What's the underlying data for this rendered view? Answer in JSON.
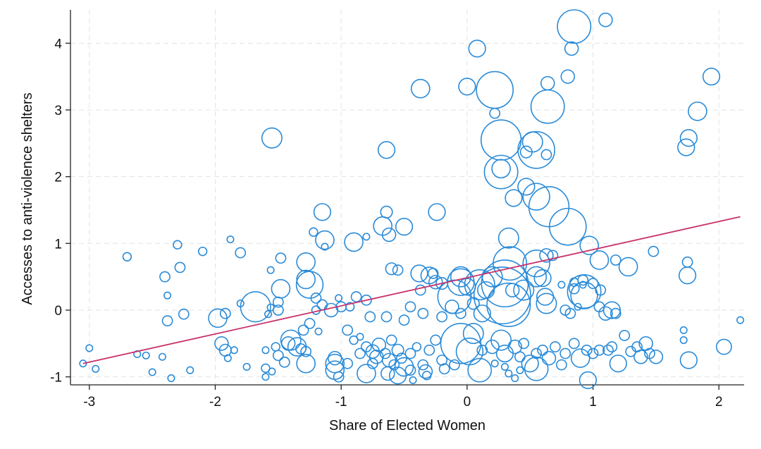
{
  "chart_data": {
    "type": "scatter",
    "xlabel": "Share of Elected Women",
    "ylabel": "Accesses to anti-violence shelters",
    "xlim": [
      -3.15,
      2.2
    ],
    "ylim": [
      -1.12,
      4.5
    ],
    "xticks": [
      -3,
      -2,
      -1,
      0,
      1,
      2
    ],
    "yticks": [
      -1,
      0,
      1,
      2,
      3,
      4
    ],
    "grid": true,
    "colors": {
      "bubble": "#2a8bd8",
      "fit_line": "#c8326b"
    },
    "fit_line": {
      "x": [
        -3.05,
        2.17
      ],
      "y": [
        -0.8,
        1.4
      ]
    },
    "points": [
      [
        0.85,
        4.25,
        1.0
      ],
      [
        1.1,
        4.35,
        0.4
      ],
      [
        0.08,
        3.92,
        0.5
      ],
      [
        0.83,
        3.92,
        0.4
      ],
      [
        1.94,
        3.5,
        0.5
      ],
      [
        0.8,
        3.5,
        0.4
      ],
      [
        0.64,
        3.4,
        0.4
      ],
      [
        -0.37,
        3.32,
        0.55
      ],
      [
        0.0,
        3.35,
        0.5
      ],
      [
        0.22,
        3.3,
        1.1
      ],
      [
        0.64,
        3.05,
        1.0
      ],
      [
        0.22,
        2.95,
        0.3
      ],
      [
        1.83,
        2.98,
        0.55
      ],
      [
        -1.55,
        2.58,
        0.6
      ],
      [
        0.27,
        2.55,
        1.2
      ],
      [
        0.52,
        2.52,
        0.6
      ],
      [
        0.55,
        2.4,
        1.1
      ],
      [
        1.76,
        2.58,
        0.5
      ],
      [
        1.74,
        2.44,
        0.5
      ],
      [
        -0.64,
        2.4,
        0.5
      ],
      [
        0.47,
        2.37,
        0.35
      ],
      [
        0.63,
        2.33,
        0.3
      ],
      [
        0.27,
        2.07,
        1.0
      ],
      [
        0.27,
        2.12,
        0.55
      ],
      [
        0.47,
        1.85,
        0.5
      ],
      [
        0.55,
        1.7,
        0.8
      ],
      [
        0.37,
        1.68,
        0.5
      ],
      [
        0.65,
        1.55,
        1.2
      ],
      [
        0.8,
        1.25,
        1.1
      ],
      [
        -1.15,
        1.47,
        0.5
      ],
      [
        -0.64,
        1.47,
        0.35
      ],
      [
        -0.24,
        1.47,
        0.5
      ],
      [
        -0.67,
        1.26,
        0.55
      ],
      [
        -0.5,
        1.25,
        0.5
      ],
      [
        -0.62,
        1.13,
        0.4
      ],
      [
        -1.13,
        1.05,
        0.55
      ],
      [
        -0.9,
        1.02,
        0.55
      ],
      [
        -1.22,
        1.17,
        0.25
      ],
      [
        -0.8,
        1.1,
        0.2
      ],
      [
        -1.13,
        0.95,
        0.2
      ],
      [
        0.33,
        1.08,
        0.6
      ],
      [
        0.97,
        0.97,
        0.55
      ],
      [
        0.34,
        0.7,
        1.0
      ],
      [
        0.55,
        0.7,
        0.8
      ],
      [
        0.63,
        0.82,
        0.4
      ],
      [
        0.68,
        0.82,
        0.3
      ],
      [
        1.05,
        0.75,
        0.55
      ],
      [
        1.18,
        0.75,
        0.3
      ],
      [
        1.28,
        0.65,
        0.55
      ],
      [
        1.48,
        0.88,
        0.3
      ],
      [
        1.75,
        0.72,
        0.3
      ],
      [
        1.75,
        0.52,
        0.5
      ],
      [
        -2.7,
        0.8,
        0.25
      ],
      [
        -2.3,
        0.98,
        0.25
      ],
      [
        -2.1,
        0.88,
        0.25
      ],
      [
        -1.88,
        1.06,
        0.2
      ],
      [
        -1.8,
        0.86,
        0.3
      ],
      [
        -2.28,
        0.64,
        0.3
      ],
      [
        -2.4,
        0.5,
        0.3
      ],
      [
        -1.48,
        0.78,
        0.3
      ],
      [
        -1.56,
        0.6,
        0.2
      ],
      [
        -1.28,
        0.72,
        0.55
      ],
      [
        -1.28,
        0.46,
        0.55
      ],
      [
        -1.25,
        0.38,
        0.8
      ],
      [
        -1.48,
        0.32,
        0.55
      ],
      [
        -1.5,
        0.12,
        0.3
      ],
      [
        -1.56,
        0.04,
        0.2
      ],
      [
        -1.68,
        0.05,
        0.9
      ],
      [
        -1.5,
        0.0,
        0.3
      ],
      [
        -1.58,
        -0.06,
        0.2
      ],
      [
        -2.38,
        0.22,
        0.2
      ],
      [
        -2.25,
        -0.06,
        0.3
      ],
      [
        -2.38,
        -0.16,
        0.3
      ],
      [
        -1.98,
        -0.12,
        0.55
      ],
      [
        -1.92,
        -0.05,
        0.3
      ],
      [
        -1.8,
        0.1,
        0.2
      ],
      [
        -1.2,
        0.18,
        0.3
      ],
      [
        -1.15,
        0.08,
        0.3
      ],
      [
        -1.2,
        0.0,
        0.25
      ],
      [
        -1.08,
        0.0,
        0.4
      ],
      [
        -1.02,
        0.18,
        0.2
      ],
      [
        -1.0,
        0.05,
        0.3
      ],
      [
        -0.93,
        0.05,
        0.25
      ],
      [
        -0.88,
        0.2,
        0.3
      ],
      [
        -0.8,
        0.15,
        0.3
      ],
      [
        -0.6,
        0.62,
        0.35
      ],
      [
        -0.55,
        0.6,
        0.3
      ],
      [
        -0.38,
        0.55,
        0.5
      ],
      [
        -0.37,
        0.3,
        0.3
      ],
      [
        -0.3,
        0.52,
        0.5
      ],
      [
        -0.27,
        0.55,
        0.3
      ],
      [
        -0.25,
        0.42,
        0.4
      ],
      [
        -0.2,
        0.4,
        0.35
      ],
      [
        -0.05,
        0.5,
        0.6
      ],
      [
        -0.1,
        0.2,
        1.0
      ],
      [
        -0.05,
        0.42,
        0.8
      ],
      [
        0.0,
        0.35,
        0.5
      ],
      [
        0.1,
        0.38,
        0.9
      ],
      [
        0.15,
        0.3,
        0.5
      ],
      [
        0.2,
        0.5,
        0.6
      ],
      [
        0.3,
        0.4,
        1.4
      ],
      [
        0.28,
        0.22,
        1.7
      ],
      [
        0.33,
        0.08,
        1.3
      ],
      [
        0.36,
        0.3,
        0.4
      ],
      [
        0.45,
        0.3,
        0.6
      ],
      [
        0.55,
        0.5,
        0.6
      ],
      [
        0.6,
        0.48,
        0.5
      ],
      [
        0.62,
        0.2,
        0.5
      ],
      [
        0.63,
        0.1,
        0.6
      ],
      [
        0.75,
        0.38,
        0.2
      ],
      [
        0.85,
        0.42,
        0.25
      ],
      [
        0.92,
        0.38,
        0.2
      ],
      [
        0.85,
        0.32,
        0.3
      ],
      [
        0.92,
        0.45,
        0.3
      ],
      [
        0.93,
        0.28,
        1.0
      ],
      [
        0.93,
        0.22,
        0.8
      ],
      [
        1.0,
        0.4,
        0.3
      ],
      [
        1.06,
        0.3,
        0.3
      ],
      [
        1.05,
        0.05,
        0.3
      ],
      [
        1.1,
        -0.05,
        0.4
      ],
      [
        1.15,
        0.0,
        0.5
      ],
      [
        1.18,
        -0.05,
        0.3
      ],
      [
        0.78,
        0.0,
        0.3
      ],
      [
        0.88,
        0.05,
        0.2
      ],
      [
        0.82,
        -0.05,
        0.3
      ],
      [
        -0.77,
        -0.1,
        0.3
      ],
      [
        -0.64,
        -0.1,
        0.3
      ],
      [
        -0.5,
        -0.15,
        0.3
      ],
      [
        -0.45,
        0.05,
        0.3
      ],
      [
        -0.35,
        -0.05,
        0.3
      ],
      [
        -0.2,
        -0.1,
        0.3
      ],
      [
        -0.12,
        0.05,
        0.4
      ],
      [
        -0.05,
        -0.05,
        0.3
      ],
      [
        0.05,
        0.1,
        0.35
      ],
      [
        0.12,
        -0.05,
        0.5
      ],
      [
        -0.95,
        -0.3,
        0.3
      ],
      [
        -0.9,
        -0.45,
        0.25
      ],
      [
        -0.85,
        -0.4,
        0.2
      ],
      [
        -1.3,
        -0.3,
        0.3
      ],
      [
        -1.25,
        -0.2,
        0.3
      ],
      [
        -1.18,
        -0.32,
        0.2
      ],
      [
        -1.4,
        -0.45,
        0.6
      ],
      [
        -1.35,
        -0.55,
        0.55
      ],
      [
        -1.28,
        -0.62,
        0.3
      ],
      [
        -1.28,
        -0.8,
        0.55
      ],
      [
        -1.05,
        -0.8,
        0.55
      ],
      [
        -1.05,
        -0.9,
        0.55
      ],
      [
        -1.05,
        -0.72,
        0.4
      ],
      [
        -0.95,
        -0.8,
        0.3
      ],
      [
        -0.85,
        -0.65,
        0.3
      ],
      [
        -0.8,
        -0.55,
        0.3
      ],
      [
        -0.75,
        -0.62,
        0.4
      ],
      [
        -0.72,
        -0.7,
        0.4
      ],
      [
        -0.7,
        -0.52,
        0.4
      ],
      [
        -0.65,
        -0.65,
        0.3
      ],
      [
        -0.62,
        -0.75,
        0.4
      ],
      [
        -0.6,
        -0.45,
        0.3
      ],
      [
        -0.55,
        -0.6,
        0.35
      ],
      [
        -0.52,
        -0.72,
        0.3
      ],
      [
        -0.5,
        -0.85,
        0.55
      ],
      [
        -0.45,
        -0.65,
        0.3
      ],
      [
        -0.4,
        -0.55,
        0.25
      ],
      [
        -0.35,
        -0.82,
        0.3
      ],
      [
        -0.33,
        -0.92,
        0.4
      ],
      [
        -0.3,
        -0.6,
        0.3
      ],
      [
        -0.25,
        -0.45,
        0.3
      ],
      [
        -0.2,
        -0.75,
        0.3
      ],
      [
        -0.1,
        -0.82,
        0.3
      ],
      [
        -0.05,
        -0.5,
        1.2
      ],
      [
        0.02,
        -0.62,
        0.8
      ],
      [
        0.05,
        -0.35,
        0.6
      ],
      [
        0.1,
        -0.9,
        0.7
      ],
      [
        0.12,
        -0.6,
        0.3
      ],
      [
        0.2,
        -0.55,
        0.4
      ],
      [
        0.27,
        -0.45,
        0.6
      ],
      [
        0.3,
        -0.65,
        0.5
      ],
      [
        0.38,
        -0.55,
        0.4
      ],
      [
        0.42,
        -0.7,
        0.3
      ],
      [
        0.45,
        -0.5,
        0.3
      ],
      [
        0.5,
        -0.8,
        0.5
      ],
      [
        0.55,
        -0.65,
        0.3
      ],
      [
        0.55,
        -0.88,
        0.7
      ],
      [
        0.6,
        -0.6,
        0.3
      ],
      [
        0.65,
        -0.72,
        0.4
      ],
      [
        0.7,
        -0.55,
        0.3
      ],
      [
        0.75,
        -0.82,
        0.3
      ],
      [
        0.78,
        -0.65,
        0.3
      ],
      [
        0.85,
        -0.5,
        0.3
      ],
      [
        0.9,
        -0.72,
        0.55
      ],
      [
        0.95,
        -0.6,
        0.3
      ],
      [
        1.0,
        -0.65,
        0.3
      ],
      [
        1.05,
        -0.6,
        0.3
      ],
      [
        1.12,
        -0.6,
        0.3
      ],
      [
        1.15,
        -0.55,
        0.3
      ],
      [
        1.2,
        -0.8,
        0.5
      ],
      [
        1.25,
        -0.38,
        0.3
      ],
      [
        1.3,
        -0.62,
        0.3
      ],
      [
        1.35,
        -0.55,
        0.3
      ],
      [
        1.38,
        -0.7,
        0.4
      ],
      [
        1.42,
        -0.5,
        0.4
      ],
      [
        1.45,
        -0.65,
        0.3
      ],
      [
        1.5,
        -0.7,
        0.4
      ],
      [
        1.72,
        -0.3,
        0.2
      ],
      [
        1.72,
        -0.45,
        0.2
      ],
      [
        1.76,
        -0.75,
        0.5
      ],
      [
        2.04,
        -0.55,
        0.45
      ],
      [
        2.17,
        -0.15,
        0.2
      ],
      [
        0.96,
        -1.05,
        0.5
      ],
      [
        0.22,
        -0.8,
        0.2
      ],
      [
        0.3,
        -0.85,
        0.2
      ],
      [
        0.33,
        -0.95,
        0.2
      ],
      [
        0.38,
        -1.02,
        0.2
      ],
      [
        0.42,
        -0.9,
        0.2
      ],
      [
        -0.8,
        -0.95,
        0.55
      ],
      [
        -0.75,
        -0.8,
        0.3
      ],
      [
        -0.63,
        -0.95,
        0.4
      ],
      [
        -0.58,
        -0.82,
        0.3
      ],
      [
        -0.55,
        -0.98,
        0.5
      ],
      [
        -0.45,
        -0.9,
        0.3
      ],
      [
        -0.43,
        -1.05,
        0.2
      ],
      [
        -0.32,
        -0.98,
        0.25
      ],
      [
        -0.18,
        -0.88,
        0.3
      ],
      [
        -1.02,
        -1.0,
        0.3
      ],
      [
        -3.05,
        -0.8,
        0.2
      ],
      [
        -3.0,
        -0.57,
        0.2
      ],
      [
        -2.95,
        -0.88,
        0.2
      ],
      [
        -2.62,
        -0.66,
        0.2
      ],
      [
        -2.55,
        -0.68,
        0.2
      ],
      [
        -2.5,
        -0.93,
        0.2
      ],
      [
        -2.42,
        -0.7,
        0.2
      ],
      [
        -2.35,
        -1.02,
        0.2
      ],
      [
        -2.2,
        -0.9,
        0.2
      ],
      [
        -1.95,
        -0.5,
        0.4
      ],
      [
        -1.92,
        -0.6,
        0.35
      ],
      [
        -1.9,
        -0.72,
        0.2
      ],
      [
        -1.85,
        -0.6,
        0.2
      ],
      [
        -1.75,
        -0.85,
        0.2
      ],
      [
        -1.6,
        -0.6,
        0.2
      ],
      [
        -1.6,
        -0.87,
        0.25
      ],
      [
        -1.52,
        -0.55,
        0.25
      ],
      [
        -1.5,
        -0.68,
        0.3
      ],
      [
        -1.45,
        -0.78,
        0.3
      ],
      [
        -1.42,
        -0.5,
        0.4
      ],
      [
        -1.32,
        -0.58,
        0.3
      ],
      [
        -1.6,
        -1.0,
        0.2
      ],
      [
        -1.55,
        -0.92,
        0.2
      ]
    ]
  }
}
